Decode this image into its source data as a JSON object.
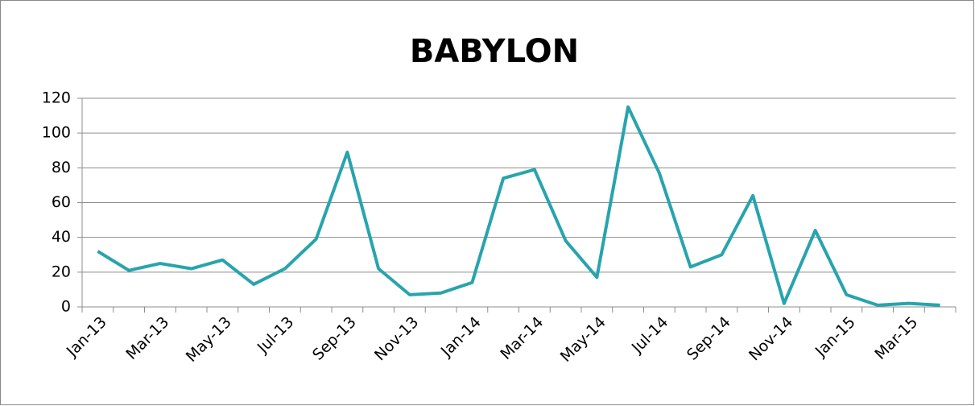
{
  "chart_data": {
    "type": "line",
    "title": "BABYLON",
    "categories": [
      "Jan-13",
      null,
      "Mar-13",
      null,
      "May-13",
      null,
      "Jul-13",
      null,
      "Sep-13",
      null,
      "Nov-13",
      null,
      "Jan-14",
      null,
      "Mar-14",
      null,
      "May-14",
      null,
      "Jul-14",
      null,
      "Sep-14",
      null,
      "Nov-14",
      null,
      "Jan-15",
      null,
      "Mar-15",
      null
    ],
    "series": [
      {
        "name": "BABYLON",
        "color": "#27a4ad",
        "values": [
          32,
          21,
          25,
          22,
          27,
          13,
          22,
          39,
          89,
          22,
          7,
          8,
          14,
          74,
          79,
          38,
          17,
          115,
          77,
          23,
          30,
          64,
          2,
          44,
          7,
          1,
          2,
          1
        ]
      }
    ],
    "ylim": [
      0,
      120
    ],
    "yticks": [
      0,
      20,
      40,
      60,
      80,
      100,
      120
    ],
    "grid": true
  }
}
